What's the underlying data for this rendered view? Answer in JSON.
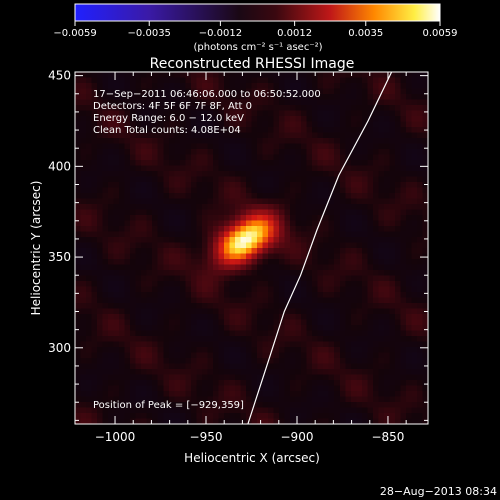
{
  "chart_data": {
    "type": "heatmap",
    "title": "Reconstructed RHESSI Image",
    "xlabel": "Heliocentric X (arcsec)",
    "ylabel": "Heliocentric Y (arcsec)",
    "xlim": [
      -1022,
      -828
    ],
    "ylim": [
      258,
      452
    ],
    "x_ticks": [
      -1000,
      -950,
      -900,
      -850
    ],
    "x_tick_labels": [
      "−1000",
      "−950",
      "−900",
      "−850"
    ],
    "y_ticks": [
      300,
      350,
      400,
      450
    ],
    "y_tick_labels": [
      "300",
      "350",
      "400",
      "450"
    ],
    "colorbar": {
      "range": [
        -0.0059,
        0.0059
      ],
      "ticks": [
        -0.0059,
        -0.0035,
        -0.0012,
        0.0012,
        0.0035,
        0.0059
      ],
      "tick_labels": [
        "−0.0059",
        "−0.0035",
        "−0.0012",
        "0.0012",
        "0.0035",
        "0.0059"
      ],
      "units": "(photons cm⁻² s⁻¹ asec⁻²)",
      "colormap": "blue-black-red-yellow-white"
    },
    "annotations": [
      "17−Sep−2011 06:46:06.000 to 06:50:52.000",
      "Detectors: 4F 5F 6F 7F 8F, Att 0",
      "Energy Range: 6.0 − 12.0 keV",
      "Clean    Total counts: 4.08E+04"
    ],
    "peak_label": "Position of Peak = [−929,359]",
    "peak": {
      "x": -929,
      "y": 359
    },
    "source": {
      "x": -929,
      "y": 359,
      "sigma_major": 13,
      "sigma_minor": 8,
      "angle_deg": 30,
      "amplitude": 0.0059
    },
    "limb": [
      [
        -927,
        258
      ],
      [
        -915,
        295
      ],
      [
        -907,
        320
      ],
      [
        -898,
        340
      ],
      [
        -889,
        365
      ],
      [
        -877,
        395
      ],
      [
        -861,
        425
      ],
      [
        -848,
        452
      ]
    ],
    "timestamp": "28−Aug−2013 08:34"
  }
}
